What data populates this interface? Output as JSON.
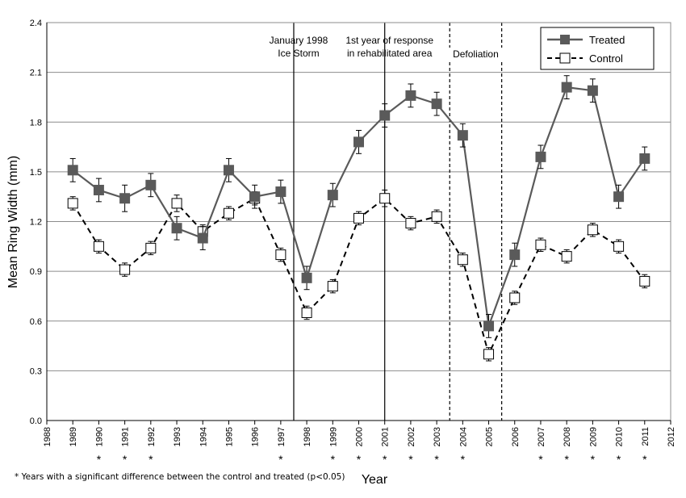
{
  "chart_data": {
    "type": "line",
    "xlabel": "Year",
    "ylabel": "Mean Ring Width (mm)",
    "xlim": [
      1988,
      2012
    ],
    "ylim": [
      0.0,
      2.4
    ],
    "x_ticks": [
      1988,
      1989,
      1990,
      1991,
      1992,
      1993,
      1994,
      1995,
      1996,
      1997,
      1998,
      1999,
      2000,
      2001,
      2002,
      2003,
      2004,
      2005,
      2006,
      2007,
      2008,
      2009,
      2010,
      2011,
      2012
    ],
    "y_ticks": [
      0.0,
      0.3,
      0.6,
      0.9,
      1.2,
      1.5,
      1.8,
      2.1,
      2.4
    ],
    "y_tick_labels": [
      "0.0",
      "0.3",
      "0.6",
      "0.9",
      "1.2",
      "1.5",
      "1.8",
      "2.1",
      "2.4"
    ],
    "grid": "horizontal",
    "legend_position": "top-right",
    "x": [
      1989,
      1990,
      1991,
      1992,
      1993,
      1994,
      1995,
      1996,
      1997,
      1998,
      1999,
      2000,
      2001,
      2002,
      2003,
      2004,
      2005,
      2006,
      2007,
      2008,
      2009,
      2010,
      2011
    ],
    "series": [
      {
        "name": "Treated",
        "color": "#5a5a5a",
        "line": "solid",
        "marker": "filled-square",
        "values": [
          1.51,
          1.39,
          1.34,
          1.42,
          1.16,
          1.1,
          1.51,
          1.35,
          1.38,
          0.86,
          1.36,
          1.68,
          1.84,
          1.96,
          1.91,
          1.72,
          0.57,
          1.0,
          1.59,
          2.01,
          1.99,
          1.35,
          1.58
        ],
        "errors": [
          0.07,
          0.07,
          0.08,
          0.07,
          0.07,
          0.07,
          0.07,
          0.07,
          0.07,
          0.07,
          0.07,
          0.07,
          0.07,
          0.07,
          0.07,
          0.07,
          0.07,
          0.07,
          0.07,
          0.07,
          0.07,
          0.07,
          0.07
        ]
      },
      {
        "name": "Control",
        "color": "#000000",
        "line": "dashed",
        "marker": "open-square",
        "values": [
          1.31,
          1.05,
          0.91,
          1.04,
          1.31,
          1.14,
          1.25,
          1.34,
          1.0,
          0.65,
          0.81,
          1.22,
          1.34,
          1.19,
          1.23,
          0.97,
          0.4,
          0.74,
          1.06,
          0.99,
          1.15,
          1.05,
          0.84
        ],
        "errors": [
          0.04,
          0.04,
          0.04,
          0.04,
          0.05,
          0.04,
          0.04,
          0.04,
          0.04,
          0.04,
          0.04,
          0.04,
          0.05,
          0.04,
          0.04,
          0.04,
          0.04,
          0.04,
          0.04,
          0.04,
          0.04,
          0.04,
          0.04
        ]
      }
    ],
    "significant_years": [
      1990,
      1991,
      1992,
      1997,
      1999,
      2000,
      2001,
      2002,
      2003,
      2004,
      2007,
      2008,
      2009,
      2010,
      2011
    ],
    "significance_marker": "*",
    "vertical_lines": [
      {
        "x": 1997.5,
        "style": "solid",
        "label_lines": [
          "January 1998",
          "Ice Storm"
        ]
      },
      {
        "x": 2001,
        "style": "solid",
        "label_lines": [
          "1st year of response",
          "in rehabilitated area"
        ]
      },
      {
        "x": 2003.5,
        "style": "dashed",
        "label_lines": []
      },
      {
        "x": 2005.5,
        "style": "dashed",
        "label_lines": []
      }
    ],
    "region_labels": [
      {
        "text": "Defoliation",
        "x_from": 2003.5,
        "x_to": 2005.5
      }
    ],
    "footnote": "* Years with a significant difference between the control and  treated (p<0.05)"
  }
}
